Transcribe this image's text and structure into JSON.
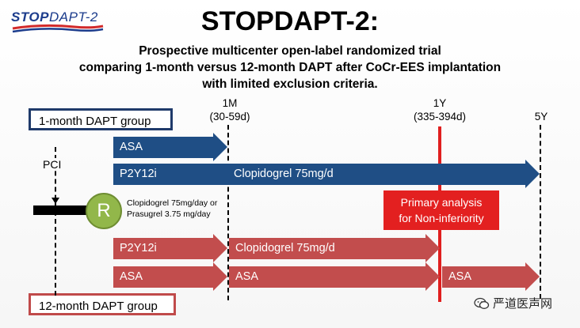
{
  "logo": {
    "stop": "STOP",
    "dapt": "DAPT-2"
  },
  "title": "STOPDAPT-2:",
  "subtitle": {
    "line1": "Prospective multicenter open-label randomized trial",
    "line2": "comparing 1-month versus 12-month DAPT after CoCr-EES implantation",
    "line3": "with limited exclusion criteria."
  },
  "groups": {
    "one_month": "1-month DAPT group",
    "twelve_month": "12-month DAPT group"
  },
  "timeline": {
    "t1m": "1M",
    "t1m_range": "(30-59d)",
    "t1y": "1Y",
    "t1y_range": "(335-394d)",
    "t5y": "5Y",
    "pci": "PCI"
  },
  "arms": {
    "blue_asa": "ASA",
    "blue_p2y12i": "P2Y12i",
    "blue_clopidogrel": "Clopidogrel 75mg/d",
    "red_p2y12i": "P2Y12i",
    "red_clopidogrel": "Clopidogrel 75mg/d",
    "red_asa_1": "ASA",
    "red_asa_2": "ASA",
    "red_asa_3": "ASA"
  },
  "randomization": {
    "symbol": "R",
    "note_line1": "Clopidogrel 75mg/day or",
    "note_line2": "Prasugrel 3.75 mg/day"
  },
  "primary_analysis": {
    "line1": "Primary analysis",
    "line2": "for Non-inferiority"
  },
  "watermark": "严道医声网",
  "colors": {
    "blue_arm": "#1f4e85",
    "red_arm": "#c24d4d",
    "primary_box": "#e32020",
    "r_circle": "#92b74a"
  }
}
